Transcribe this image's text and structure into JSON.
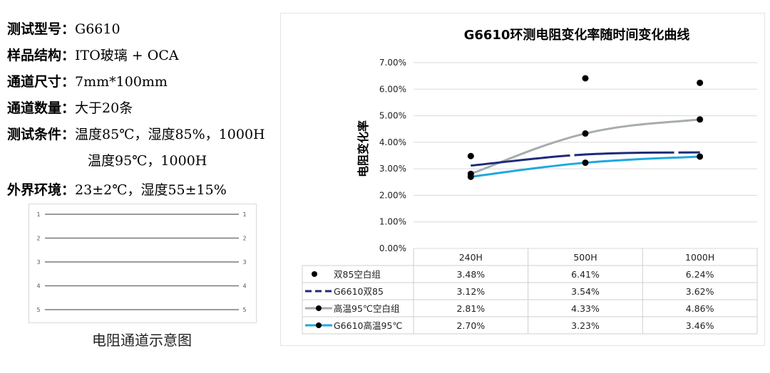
{
  "specs": [
    {
      "label": "测试型号：",
      "value": "G6610"
    },
    {
      "label": "样品结构：",
      "value": "ITO玻璃 + OCA"
    },
    {
      "label": "通道尺寸：",
      "value": "7mm*100mm"
    },
    {
      "label": "通道数量：",
      "value": "大于20条"
    },
    {
      "label": "测试条件：",
      "value": "温度85℃，湿度85%，1000H"
    },
    {
      "label": "",
      "value": "温度95℃，1000H"
    },
    {
      "label": "外界环境：",
      "value": "23±2℃，湿度55±15%"
    }
  ],
  "diagram": {
    "caption": "电阻通道示意图",
    "channels": [
      "1",
      "2",
      "3",
      "4",
      "5"
    ]
  },
  "chart_data": {
    "type": "line",
    "title": "G6610环测电阻变化率随时间变化曲线",
    "ylabel": "电阻变化率",
    "xlabel": "",
    "categories": [
      "240H",
      "500H",
      "1000H"
    ],
    "ylim": [
      0,
      7
    ],
    "yticks": [
      "0.00%",
      "1.00%",
      "2.00%",
      "3.00%",
      "4.00%",
      "5.00%",
      "6.00%",
      "7.00%"
    ],
    "grid": true,
    "series": [
      {
        "name": "双85空白组",
        "values": [
          3.48,
          6.41,
          6.24
        ],
        "labels": [
          "3.48%",
          "6.41%",
          "6.24%"
        ],
        "color": "#000000",
        "style": "markers"
      },
      {
        "name": "G6610双85",
        "values": [
          3.12,
          3.54,
          3.62
        ],
        "labels": [
          "3.12%",
          "3.54%",
          "3.62%"
        ],
        "color": "#1f2a7a",
        "style": "dashed"
      },
      {
        "name": "高温95℃空白组",
        "values": [
          2.81,
          4.33,
          4.86
        ],
        "labels": [
          "2.81%",
          "4.33%",
          "4.86%"
        ],
        "color": "#a6acaf",
        "style": "line-markers"
      },
      {
        "name": "G6610高温95℃",
        "values": [
          2.7,
          3.23,
          3.46
        ],
        "labels": [
          "2.70%",
          "3.23%",
          "3.46%"
        ],
        "color": "#1fa8df",
        "style": "line-markers"
      }
    ]
  }
}
